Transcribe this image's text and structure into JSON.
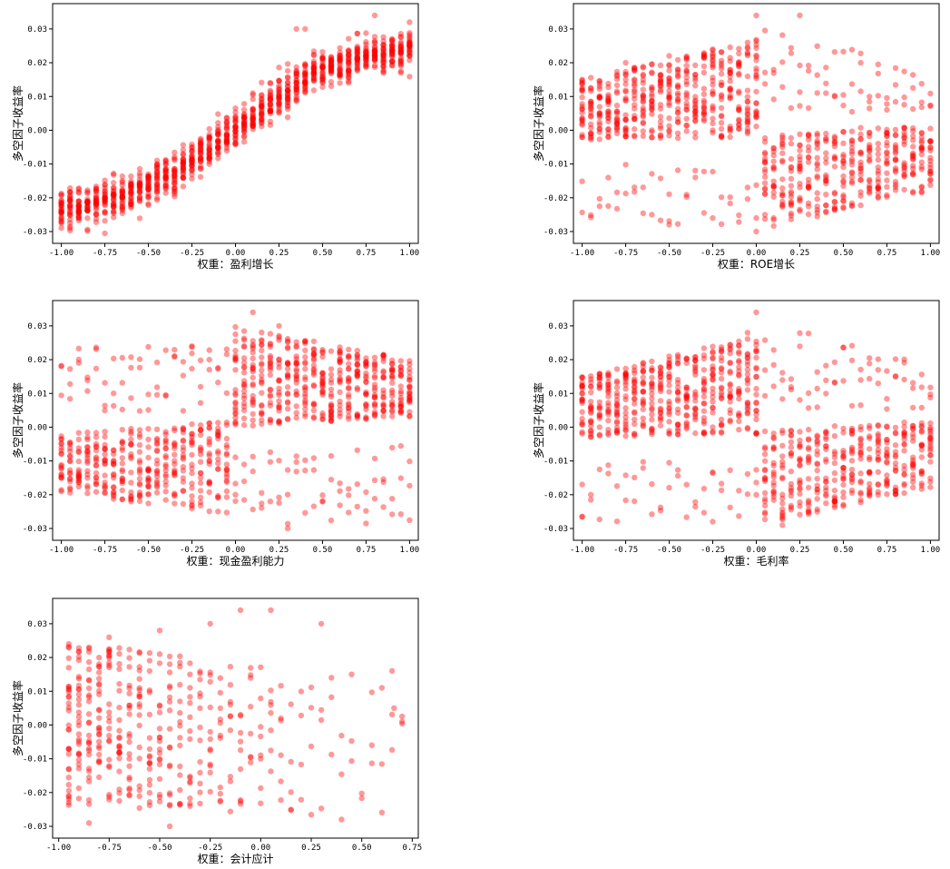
{
  "chart_data": [
    {
      "type": "scatter",
      "xlabel": "权重：盈利增长",
      "ylabel": "多空因子收益率",
      "xlim": [
        -1.05,
        1.05
      ],
      "ylim": [
        -0.0335,
        0.0375
      ],
      "xticks": [
        -1.0,
        -0.75,
        -0.5,
        -0.25,
        0.0,
        0.25,
        0.5,
        0.75,
        1.0
      ],
      "xtick_labels": [
        "-1.00",
        "-0.75",
        "-0.50",
        "-0.25",
        "0.00",
        "0.25",
        "0.50",
        "0.75",
        "1.00"
      ],
      "yticks": [
        -0.03,
        -0.02,
        -0.01,
        0.0,
        0.01,
        0.02,
        0.03
      ],
      "ytick_labels": [
        "-0.03",
        "-0.02",
        "-0.01",
        "0.00",
        "0.01",
        "0.02",
        "0.03"
      ],
      "color": "#ff0000",
      "pattern": "monotone",
      "x_range": [
        -1.0,
        1.0
      ],
      "points": [
        [
          -1.0,
          -0.024
        ],
        [
          -1.0,
          -0.027
        ],
        [
          -0.95,
          -0.022
        ],
        [
          -0.95,
          -0.029
        ],
        [
          -0.9,
          -0.021
        ],
        [
          -0.9,
          -0.026
        ],
        [
          -0.85,
          -0.021
        ],
        [
          -0.8,
          -0.02
        ],
        [
          -0.8,
          -0.025
        ],
        [
          -0.75,
          -0.019
        ],
        [
          -0.7,
          -0.019
        ],
        [
          -0.7,
          -0.024
        ],
        [
          -0.65,
          -0.018
        ],
        [
          -0.6,
          -0.017
        ],
        [
          -0.55,
          -0.016
        ],
        [
          -0.5,
          -0.013
        ],
        [
          -0.5,
          -0.02
        ],
        [
          -0.45,
          -0.011
        ],
        [
          -0.4,
          -0.009
        ],
        [
          -0.35,
          -0.008
        ],
        [
          -0.3,
          -0.007
        ],
        [
          -0.25,
          -0.006
        ],
        [
          -0.2,
          -0.005
        ],
        [
          -0.15,
          -0.004
        ],
        [
          -0.1,
          -0.003
        ],
        [
          -0.05,
          -0.001
        ],
        [
          0.0,
          0.001
        ],
        [
          0.05,
          0.002
        ],
        [
          0.1,
          0.006
        ],
        [
          0.15,
          0.008
        ],
        [
          0.2,
          0.01
        ],
        [
          0.25,
          0.012
        ],
        [
          0.3,
          0.014
        ],
        [
          0.35,
          0.016
        ],
        [
          0.4,
          0.017
        ],
        [
          0.45,
          0.018
        ],
        [
          0.5,
          0.019
        ],
        [
          0.55,
          0.02
        ],
        [
          0.6,
          0.02
        ],
        [
          0.65,
          0.021
        ],
        [
          0.7,
          0.022
        ],
        [
          0.75,
          0.022
        ],
        [
          0.8,
          0.023
        ],
        [
          0.85,
          0.023
        ],
        [
          0.9,
          0.024
        ],
        [
          0.95,
          0.024
        ],
        [
          1.0,
          0.025
        ],
        [
          0.8,
          0.034
        ],
        [
          1.0,
          0.032
        ],
        [
          0.35,
          0.03
        ],
        [
          0.4,
          0.03
        ]
      ]
    },
    {
      "type": "scatter",
      "xlabel": "权重：ROE增长",
      "ylabel": "多空因子收益率",
      "xlim": [
        -1.05,
        1.05
      ],
      "ylim": [
        -0.0335,
        0.0375
      ],
      "xticks": [
        -1.0,
        -0.75,
        -0.5,
        -0.25,
        0.0,
        0.25,
        0.5,
        0.75,
        1.0
      ],
      "xtick_labels": [
        "-1.00",
        "-0.75",
        "-0.50",
        "-0.25",
        "0.00",
        "0.25",
        "0.50",
        "0.75",
        "1.00"
      ],
      "yticks": [
        -0.03,
        -0.02,
        -0.01,
        0.0,
        0.01,
        0.02,
        0.03
      ],
      "ytick_labels": [
        "-0.03",
        "-0.02",
        "-0.01",
        "0.00",
        "0.01",
        "0.02",
        "0.03"
      ],
      "color": "#ff0000",
      "pattern": "left-high-right-low",
      "x_range": [
        -1.0,
        1.0
      ],
      "points": [
        [
          -1.0,
          0.015
        ],
        [
          -1.0,
          -0.002
        ],
        [
          -0.75,
          0.02
        ],
        [
          -0.5,
          0.022
        ],
        [
          -0.25,
          0.024
        ],
        [
          -0.05,
          0.026
        ],
        [
          0.0,
          0.034
        ],
        [
          0.0,
          -0.03
        ],
        [
          0.25,
          -0.02
        ],
        [
          0.5,
          -0.015
        ],
        [
          0.75,
          -0.01
        ],
        [
          1.0,
          -0.005
        ],
        [
          0.25,
          0.034
        ],
        [
          -0.5,
          -0.028
        ]
      ]
    },
    {
      "type": "scatter",
      "xlabel": "权重：现金盈利能力",
      "ylabel": "多空因子收益率",
      "xlim": [
        -1.05,
        1.05
      ],
      "ylim": [
        -0.0335,
        0.0375
      ],
      "xticks": [
        -1.0,
        -0.75,
        -0.5,
        -0.25,
        0.0,
        0.25,
        0.5,
        0.75,
        1.0
      ],
      "xtick_labels": [
        "-1.00",
        "-0.75",
        "-0.50",
        "-0.25",
        "0.00",
        "0.25",
        "0.50",
        "0.75",
        "1.00"
      ],
      "yticks": [
        -0.03,
        -0.02,
        -0.01,
        0.0,
        0.01,
        0.02,
        0.03
      ],
      "ytick_labels": [
        "-0.03",
        "-0.02",
        "-0.01",
        "0.00",
        "0.01",
        "0.02",
        "0.03"
      ],
      "color": "#ff0000",
      "pattern": "left-low-right-high",
      "x_range": [
        -1.0,
        1.0
      ],
      "points": [
        [
          -1.0,
          -0.005
        ],
        [
          -1.0,
          -0.019
        ],
        [
          -0.75,
          -0.01
        ],
        [
          -0.5,
          -0.015
        ],
        [
          -0.25,
          -0.018
        ],
        [
          0.0,
          0.02
        ],
        [
          0.0,
          -0.02
        ],
        [
          0.1,
          0.034
        ],
        [
          0.25,
          0.03
        ],
        [
          0.5,
          0.022
        ],
        [
          0.75,
          0.018
        ],
        [
          1.0,
          0.012
        ],
        [
          -0.25,
          0.024
        ],
        [
          0.3,
          -0.03
        ]
      ]
    },
    {
      "type": "scatter",
      "xlabel": "权重：毛利率",
      "ylabel": "多空因子收益率",
      "xlim": [
        -1.05,
        1.05
      ],
      "ylim": [
        -0.0335,
        0.0375
      ],
      "xticks": [
        -1.0,
        -0.75,
        -0.5,
        -0.25,
        0.0,
        0.25,
        0.5,
        0.75,
        1.0
      ],
      "xtick_labels": [
        "-1.00",
        "-0.75",
        "-0.50",
        "-0.25",
        "0.00",
        "0.25",
        "0.50",
        "0.75",
        "1.00"
      ],
      "yticks": [
        -0.03,
        -0.02,
        -0.01,
        0.0,
        0.01,
        0.02,
        0.03
      ],
      "ytick_labels": [
        "-0.03",
        "-0.02",
        "-0.01",
        "0.00",
        "0.01",
        "0.02",
        "0.03"
      ],
      "color": "#ff0000",
      "pattern": "left-high-right-low",
      "x_range": [
        -1.0,
        1.0
      ],
      "points": [
        [
          -1.0,
          0.01
        ],
        [
          -1.0,
          -0.017
        ],
        [
          -0.75,
          0.016
        ],
        [
          -0.5,
          0.019
        ],
        [
          -0.25,
          0.022
        ],
        [
          -0.05,
          0.028
        ],
        [
          0.0,
          0.034
        ],
        [
          0.0,
          -0.02
        ],
        [
          0.25,
          -0.018
        ],
        [
          0.5,
          -0.012
        ],
        [
          0.75,
          -0.008
        ],
        [
          1.0,
          -0.002
        ],
        [
          -0.25,
          -0.028
        ],
        [
          0.15,
          -0.029
        ]
      ]
    },
    {
      "type": "scatter",
      "xlabel": "权重：会计应计",
      "ylabel": "多空因子收益率",
      "xlim": [
        -1.03,
        0.78
      ],
      "ylim": [
        -0.0335,
        0.0375
      ],
      "xticks": [
        -1.0,
        -0.75,
        -0.5,
        -0.25,
        0.0,
        0.25,
        0.5,
        0.75
      ],
      "xtick_labels": [
        "-1.00",
        "-0.75",
        "-0.50",
        "-0.25",
        "0.00",
        "0.25",
        "0.50",
        "0.75"
      ],
      "yticks": [
        -0.03,
        -0.02,
        -0.01,
        0.0,
        0.01,
        0.02,
        0.03
      ],
      "ytick_labels": [
        "-0.03",
        "-0.02",
        "-0.01",
        "0.00",
        "0.01",
        "0.02",
        "0.03"
      ],
      "color": "#ff0000",
      "pattern": "dense-left-sparse-right",
      "x_range": [
        -0.95,
        0.7
      ],
      "points": [
        [
          -0.95,
          0.024
        ],
        [
          -0.95,
          -0.023
        ],
        [
          -0.75,
          0.026
        ],
        [
          -0.5,
          0.028
        ],
        [
          -0.25,
          0.03
        ],
        [
          -0.1,
          0.034
        ],
        [
          0.05,
          0.034
        ],
        [
          0.3,
          0.03
        ],
        [
          0.45,
          0.015
        ],
        [
          0.55,
          -0.006
        ],
        [
          0.6,
          0.011
        ],
        [
          0.65,
          0.016
        ],
        [
          0.7,
          0.001
        ],
        [
          0.66,
          0.005
        ],
        [
          0.4,
          -0.028
        ],
        [
          -0.85,
          -0.029
        ],
        [
          -0.45,
          -0.03
        ]
      ]
    }
  ]
}
